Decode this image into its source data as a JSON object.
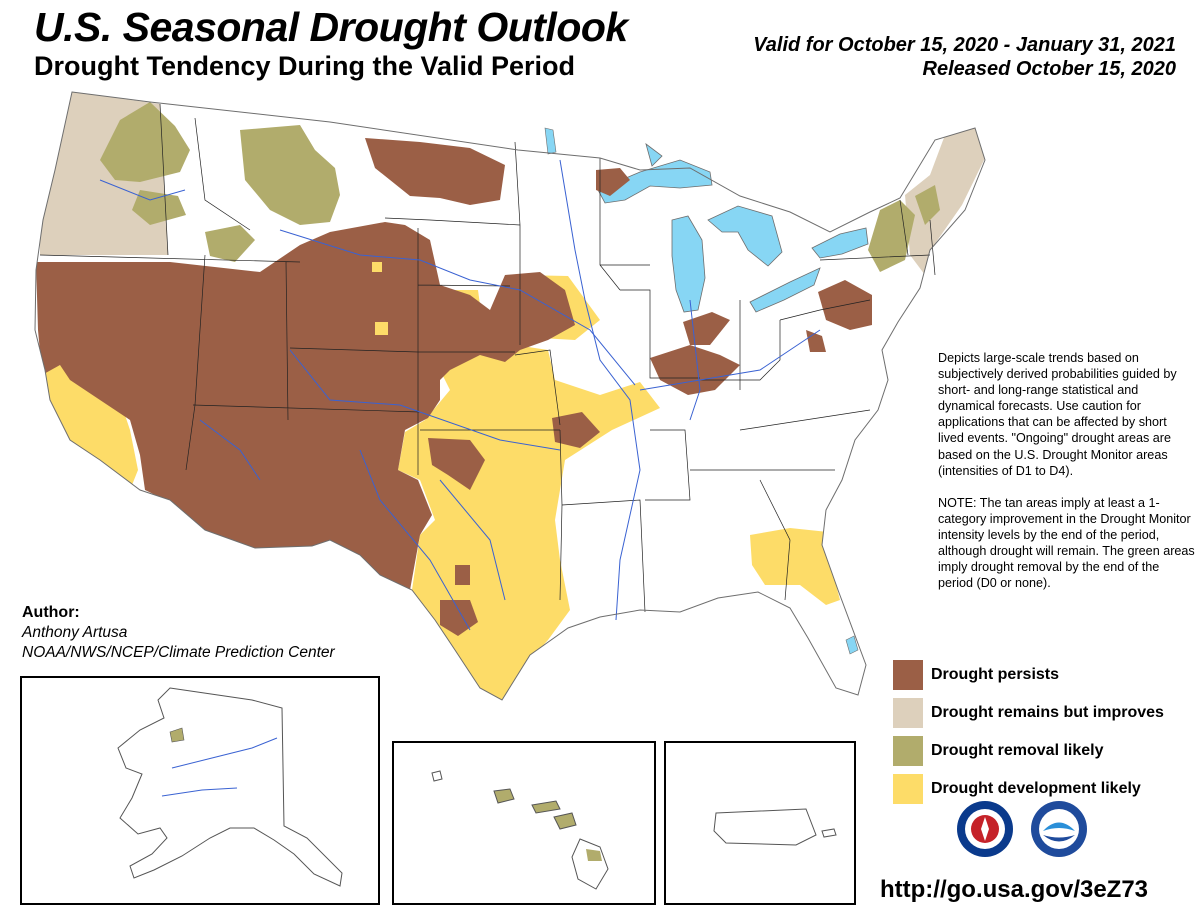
{
  "header": {
    "title": "U.S. Seasonal Drought Outlook",
    "subtitle": "Drought Tendency During the Valid Period",
    "valid": "Valid for October 15, 2020 - January 31, 2021",
    "released": "Released October 15, 2020"
  },
  "description": {
    "para1": "Depicts large-scale trends based on subjectively derived probabilities guided by short- and long-range statistical and dynamical forecasts. Use caution for applications that can be affected by short lived events. \"Ongoing\" drought areas are based on the U.S. Drought Monitor areas (intensities of D1 to D4).",
    "para2": "NOTE: The tan areas imply at least a 1-category improvement in the Drought Monitor intensity levels by the end of the period, although drought will remain. The green areas imply drought removal by the end of the period (D0 or none)."
  },
  "author": {
    "label": "Author:",
    "name": "Anthony Artusa",
    "org": "NOAA/NWS/NCEP/Climate Prediction Center"
  },
  "legend": [
    {
      "label": "Drought persists",
      "color": "#9b5f46"
    },
    {
      "label": "Drought remains but improves",
      "color": "#ddd0bc"
    },
    {
      "label": "Drought removal likely",
      "color": "#b1ac6c"
    },
    {
      "label": "Drought development likely",
      "color": "#fddc68"
    }
  ],
  "colors": {
    "water": "#87d6f4",
    "rivers": "#3a62d2",
    "border": "#6e6e6e",
    "state_lines": "#222222"
  },
  "logos": [
    "nws-logo-icon",
    "noaa-logo-icon"
  ],
  "footer_url": "http://go.usa.gov/3eZ73"
}
